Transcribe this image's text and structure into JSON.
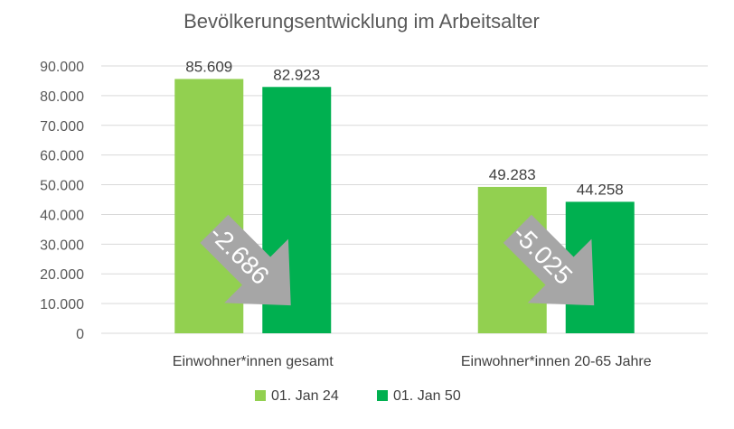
{
  "chart_data": {
    "type": "bar",
    "title": "Bevölkerungsentwicklung im Arbeitsalter",
    "categories": [
      "Einwohner*innen gesamt",
      "Einwohner*innen 20-65 Jahre"
    ],
    "series": [
      {
        "name": "01. Jan 24",
        "values": [
          85609,
          49283
        ],
        "labels": [
          "85.609",
          "49.283"
        ],
        "color": "#92d050"
      },
      {
        "name": "01. Jan 50",
        "values": [
          82923,
          44258
        ],
        "labels": [
          "82.923",
          "44.258"
        ],
        "color": "#00b050"
      }
    ],
    "ylim": [
      0,
      90000
    ],
    "yticks": [
      0,
      10000,
      20000,
      30000,
      40000,
      50000,
      60000,
      70000,
      80000,
      90000
    ],
    "ytick_labels": [
      "0",
      "10.000",
      "20.000",
      "30.000",
      "40.000",
      "50.000",
      "60.000",
      "70.000",
      "80.000",
      "90.000"
    ],
    "grid": true,
    "legend_position": "bottom",
    "annotations": [
      {
        "text": "-2.686",
        "category": "Einwohner*innen gesamt",
        "color": "#a6a6a6"
      },
      {
        "text": "-5.025",
        "category": "Einwohner*innen 20-65 Jahre",
        "color": "#a6a6a6"
      }
    ]
  }
}
